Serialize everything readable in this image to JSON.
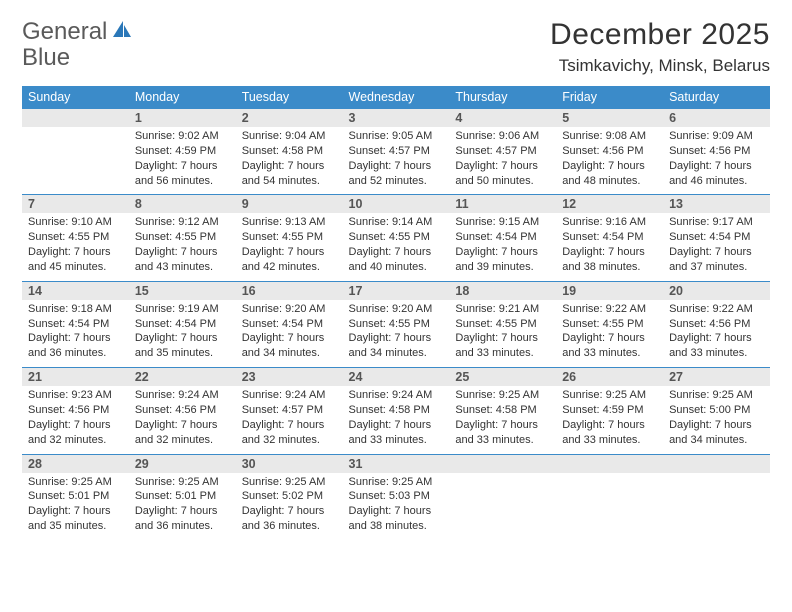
{
  "logo": {
    "word1": "General",
    "word2": "Blue"
  },
  "title": "December 2025",
  "subtitle": "Tsimkavichy, Minsk, Belarus",
  "colors": {
    "header_bg": "#3b8bc9",
    "header_text": "#ffffff",
    "daynum_bg": "#e9e9e9",
    "rule": "#3b8bc9",
    "logo_gray": "#5a5a5a",
    "logo_blue": "#2a77b8"
  },
  "daynames": [
    "Sunday",
    "Monday",
    "Tuesday",
    "Wednesday",
    "Thursday",
    "Friday",
    "Saturday"
  ],
  "weeks": [
    {
      "nums": [
        "",
        "1",
        "2",
        "3",
        "4",
        "5",
        "6"
      ],
      "cells": [
        null,
        {
          "sr": "Sunrise: 9:02 AM",
          "ss": "Sunset: 4:59 PM",
          "dl": "Daylight: 7 hours and 56 minutes."
        },
        {
          "sr": "Sunrise: 9:04 AM",
          "ss": "Sunset: 4:58 PM",
          "dl": "Daylight: 7 hours and 54 minutes."
        },
        {
          "sr": "Sunrise: 9:05 AM",
          "ss": "Sunset: 4:57 PM",
          "dl": "Daylight: 7 hours and 52 minutes."
        },
        {
          "sr": "Sunrise: 9:06 AM",
          "ss": "Sunset: 4:57 PM",
          "dl": "Daylight: 7 hours and 50 minutes."
        },
        {
          "sr": "Sunrise: 9:08 AM",
          "ss": "Sunset: 4:56 PM",
          "dl": "Daylight: 7 hours and 48 minutes."
        },
        {
          "sr": "Sunrise: 9:09 AM",
          "ss": "Sunset: 4:56 PM",
          "dl": "Daylight: 7 hours and 46 minutes."
        }
      ]
    },
    {
      "nums": [
        "7",
        "8",
        "9",
        "10",
        "11",
        "12",
        "13"
      ],
      "cells": [
        {
          "sr": "Sunrise: 9:10 AM",
          "ss": "Sunset: 4:55 PM",
          "dl": "Daylight: 7 hours and 45 minutes."
        },
        {
          "sr": "Sunrise: 9:12 AM",
          "ss": "Sunset: 4:55 PM",
          "dl": "Daylight: 7 hours and 43 minutes."
        },
        {
          "sr": "Sunrise: 9:13 AM",
          "ss": "Sunset: 4:55 PM",
          "dl": "Daylight: 7 hours and 42 minutes."
        },
        {
          "sr": "Sunrise: 9:14 AM",
          "ss": "Sunset: 4:55 PM",
          "dl": "Daylight: 7 hours and 40 minutes."
        },
        {
          "sr": "Sunrise: 9:15 AM",
          "ss": "Sunset: 4:54 PM",
          "dl": "Daylight: 7 hours and 39 minutes."
        },
        {
          "sr": "Sunrise: 9:16 AM",
          "ss": "Sunset: 4:54 PM",
          "dl": "Daylight: 7 hours and 38 minutes."
        },
        {
          "sr": "Sunrise: 9:17 AM",
          "ss": "Sunset: 4:54 PM",
          "dl": "Daylight: 7 hours and 37 minutes."
        }
      ]
    },
    {
      "nums": [
        "14",
        "15",
        "16",
        "17",
        "18",
        "19",
        "20"
      ],
      "cells": [
        {
          "sr": "Sunrise: 9:18 AM",
          "ss": "Sunset: 4:54 PM",
          "dl": "Daylight: 7 hours and 36 minutes."
        },
        {
          "sr": "Sunrise: 9:19 AM",
          "ss": "Sunset: 4:54 PM",
          "dl": "Daylight: 7 hours and 35 minutes."
        },
        {
          "sr": "Sunrise: 9:20 AM",
          "ss": "Sunset: 4:54 PM",
          "dl": "Daylight: 7 hours and 34 minutes."
        },
        {
          "sr": "Sunrise: 9:20 AM",
          "ss": "Sunset: 4:55 PM",
          "dl": "Daylight: 7 hours and 34 minutes."
        },
        {
          "sr": "Sunrise: 9:21 AM",
          "ss": "Sunset: 4:55 PM",
          "dl": "Daylight: 7 hours and 33 minutes."
        },
        {
          "sr": "Sunrise: 9:22 AM",
          "ss": "Sunset: 4:55 PM",
          "dl": "Daylight: 7 hours and 33 minutes."
        },
        {
          "sr": "Sunrise: 9:22 AM",
          "ss": "Sunset: 4:56 PM",
          "dl": "Daylight: 7 hours and 33 minutes."
        }
      ]
    },
    {
      "nums": [
        "21",
        "22",
        "23",
        "24",
        "25",
        "26",
        "27"
      ],
      "cells": [
        {
          "sr": "Sunrise: 9:23 AM",
          "ss": "Sunset: 4:56 PM",
          "dl": "Daylight: 7 hours and 32 minutes."
        },
        {
          "sr": "Sunrise: 9:24 AM",
          "ss": "Sunset: 4:56 PM",
          "dl": "Daylight: 7 hours and 32 minutes."
        },
        {
          "sr": "Sunrise: 9:24 AM",
          "ss": "Sunset: 4:57 PM",
          "dl": "Daylight: 7 hours and 32 minutes."
        },
        {
          "sr": "Sunrise: 9:24 AM",
          "ss": "Sunset: 4:58 PM",
          "dl": "Daylight: 7 hours and 33 minutes."
        },
        {
          "sr": "Sunrise: 9:25 AM",
          "ss": "Sunset: 4:58 PM",
          "dl": "Daylight: 7 hours and 33 minutes."
        },
        {
          "sr": "Sunrise: 9:25 AM",
          "ss": "Sunset: 4:59 PM",
          "dl": "Daylight: 7 hours and 33 minutes."
        },
        {
          "sr": "Sunrise: 9:25 AM",
          "ss": "Sunset: 5:00 PM",
          "dl": "Daylight: 7 hours and 34 minutes."
        }
      ]
    },
    {
      "nums": [
        "28",
        "29",
        "30",
        "31",
        "",
        "",
        ""
      ],
      "cells": [
        {
          "sr": "Sunrise: 9:25 AM",
          "ss": "Sunset: 5:01 PM",
          "dl": "Daylight: 7 hours and 35 minutes."
        },
        {
          "sr": "Sunrise: 9:25 AM",
          "ss": "Sunset: 5:01 PM",
          "dl": "Daylight: 7 hours and 36 minutes."
        },
        {
          "sr": "Sunrise: 9:25 AM",
          "ss": "Sunset: 5:02 PM",
          "dl": "Daylight: 7 hours and 36 minutes."
        },
        {
          "sr": "Sunrise: 9:25 AM",
          "ss": "Sunset: 5:03 PM",
          "dl": "Daylight: 7 hours and 38 minutes."
        },
        null,
        null,
        null
      ]
    }
  ]
}
